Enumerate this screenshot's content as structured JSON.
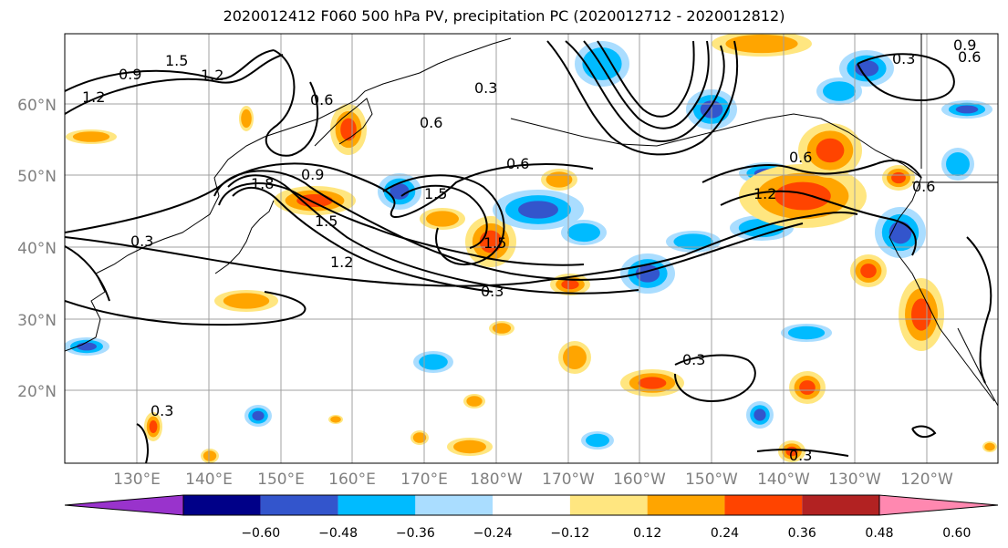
{
  "title": "2020012412 F060 500 hPa PV, precipitation PC (2020012712 - 2020012812)",
  "lat_labels": [
    "60°N",
    "50°N",
    "40°N",
    "30°N",
    "20°N"
  ],
  "lon_labels": [
    "130°E",
    "140°E",
    "150°E",
    "160°E",
    "170°E",
    "180°W",
    "170°W",
    "160°W",
    "150°W",
    "140°W",
    "130°W",
    "120°W"
  ],
  "contour_labels": [
    "0.9",
    "1.5",
    "1.2",
    "1.2",
    "0.6",
    "0.6",
    "0.3",
    "0.6",
    "1.8",
    "0.9",
    "1.5",
    "1.5",
    "1.2",
    "1.5",
    "0.3",
    "0.3",
    "1.2",
    "0.6",
    "0.6",
    "0.3",
    "0.3",
    "0.9",
    "0.6",
    "0.3",
    "0.3"
  ],
  "colorbar": {
    "ticks": [
      "−0.60",
      "−0.48",
      "−0.36",
      "−0.24",
      "−0.12",
      "0.12",
      "0.24",
      "0.36",
      "0.48",
      "0.60"
    ],
    "colors": [
      "#9933cc",
      "#000088",
      "#3355cc",
      "#00bbff",
      "#aaddff",
      "#ffffff",
      "#ffe680",
      "#ffa500",
      "#ff4400",
      "#b22222",
      "#ff88b0"
    ]
  },
  "colors": {
    "grid": "#a0a0a0",
    "contour": "#000000",
    "blue_light": "#aaddff",
    "blue": "#00bbff",
    "blue_mid": "#3355cc",
    "yellow": "#ffe680",
    "orange": "#ffa500",
    "red": "#ff4400"
  }
}
